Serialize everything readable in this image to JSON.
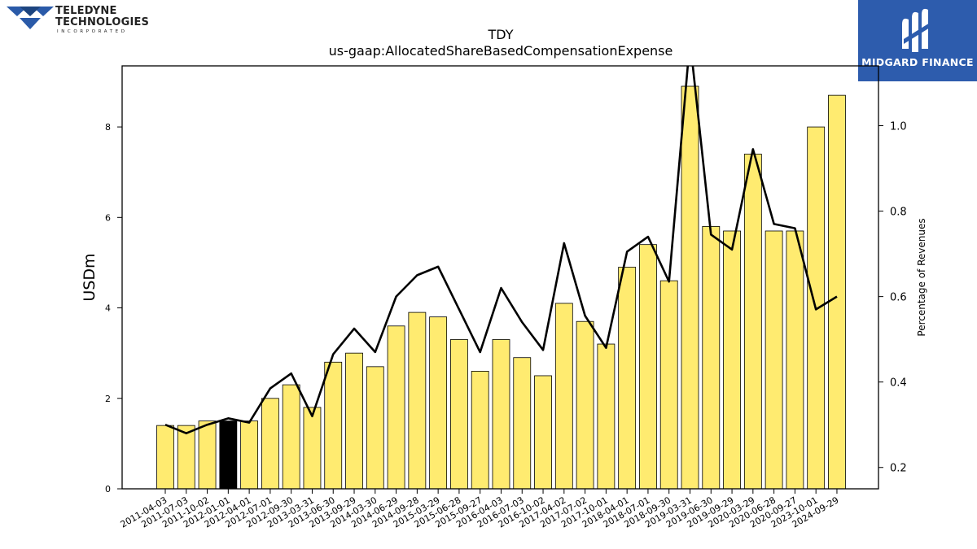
{
  "logos": {
    "left": {
      "line1": "TELEDYNE",
      "line2": "TECHNOLOGIES",
      "line3": "INCORPORATED",
      "icon": "teledyne-triangle-logo"
    },
    "right": {
      "label": "MIDGARD FINANCE",
      "icon": "midgard-finance-logo",
      "color": "#2d5cad"
    }
  },
  "chart_data": {
    "type": "bar",
    "title": "TDY",
    "subtitle": "us-gaap:AllocatedShareBasedCompensationExpense",
    "ylabel": "USDm",
    "y2label": "Percentage of Revenues",
    "ylim": [
      0,
      9.35
    ],
    "y2lim": [
      0.15,
      1.14
    ],
    "yticks": [
      0,
      2,
      4,
      6,
      8
    ],
    "y2ticks": [
      0.2,
      0.4,
      0.6,
      0.8,
      1.0
    ],
    "bar_color": "#ffeb70",
    "highlight_color": "#000000",
    "line_color": "#000000",
    "grid": false,
    "categories": [
      "2011-04-03",
      "2011-07-03",
      "2011-10-02",
      "2012-01-01",
      "2012-04-01",
      "2012-07-01",
      "2012-09-30",
      "2013-03-31",
      "2013-06-30",
      "2013-09-29",
      "2014-03-30",
      "2014-06-29",
      "2014-09-28",
      "2015-03-29",
      "2015-06-28",
      "2015-09-27",
      "2016-04-03",
      "2016-07-03",
      "2016-10-02",
      "2017-04-02",
      "2017-07-02",
      "2017-10-01",
      "2018-04-01",
      "2018-07-01",
      "2018-09-30",
      "2019-03-31",
      "2019-06-30",
      "2019-09-29",
      "2020-03-29",
      "2020-06-28",
      "2020-09-27",
      "2023-10-01",
      "2024-09-29"
    ],
    "values": [
      1.4,
      1.4,
      1.5,
      1.5,
      1.5,
      2.0,
      2.3,
      1.8,
      2.8,
      3.0,
      2.7,
      3.6,
      3.9,
      3.8,
      3.3,
      2.6,
      3.3,
      2.9,
      2.5,
      4.1,
      3.7,
      3.2,
      4.9,
      5.4,
      4.6,
      8.9,
      5.8,
      5.7,
      7.4,
      5.7,
      5.7,
      8.0,
      8.7
    ],
    "highlight_index": 3,
    "series": [
      {
        "type": "line",
        "axis": "right",
        "values": [
          0.3,
          0.28,
          0.3,
          0.315,
          0.305,
          0.385,
          0.42,
          0.32,
          0.465,
          0.525,
          0.47,
          0.6,
          0.65,
          0.67,
          0.57,
          0.47,
          0.62,
          0.54,
          0.475,
          0.725,
          0.555,
          0.48,
          0.705,
          0.74,
          0.635,
          1.2,
          0.745,
          0.71,
          0.945,
          0.77,
          0.76,
          0.57,
          0.6
        ]
      }
    ]
  }
}
